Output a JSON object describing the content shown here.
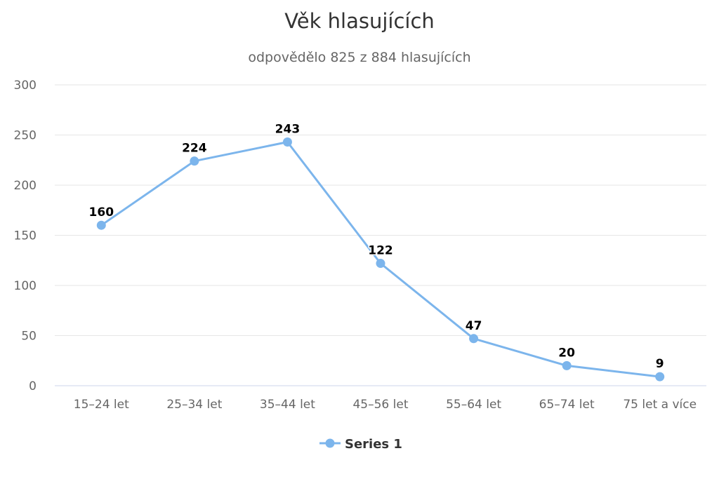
{
  "chart_data": {
    "type": "line",
    "title": "Věk hlasujících",
    "subtitle": "odpovědělo 825 z 884 hlasujících",
    "xlabel": "",
    "ylabel": "",
    "categories": [
      "15–24 let",
      "25–34 let",
      "35–44 let",
      "45–56 let",
      "55–64 let",
      "65–74 let",
      "75 let a více"
    ],
    "series": [
      {
        "name": "Series 1",
        "values": [
          160,
          224,
          243,
          122,
          47,
          20,
          9
        ],
        "color": "#7cb5ec"
      }
    ],
    "ylim": [
      0,
      300
    ],
    "yticks": [
      0,
      50,
      100,
      150,
      200,
      250,
      300
    ],
    "grid": true,
    "data_labels": true,
    "legend_position": "bottom-center"
  }
}
